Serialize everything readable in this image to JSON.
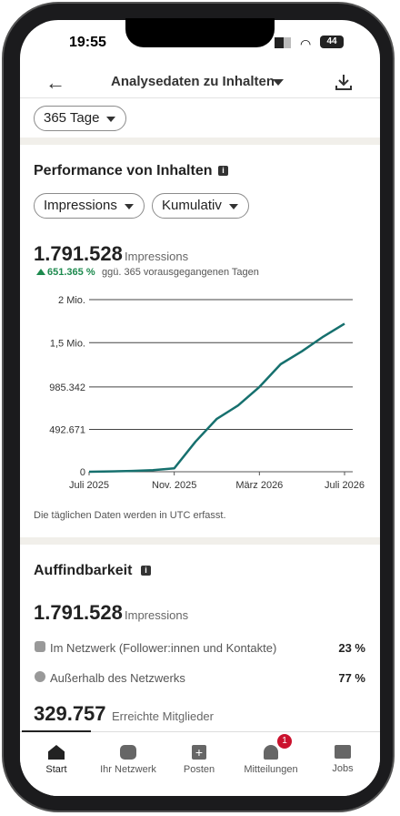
{
  "status_bar": {
    "time": "19:55",
    "battery": "44"
  },
  "header": {
    "title": "Analysedaten zu Inhalten"
  },
  "filter": "365 Tage",
  "performance": {
    "title": "Performance von Inhalten",
    "dropdowns": [
      "Impressions",
      "Kumulativ"
    ],
    "total": "1.791.528",
    "total_label": "Impressions",
    "change": "651.365 %",
    "change_label": "ggü. 365 vorausgegangenen Tagen",
    "chart_data": {
      "type": "line",
      "categories": [
        "Juli 2025",
        null,
        null,
        null,
        "Nov. 2025",
        null,
        null,
        null,
        "März 2026",
        null,
        null,
        null,
        "Juli 2026"
      ],
      "values": [
        0,
        4000,
        9000,
        18000,
        40000,
        350000,
        615000,
        770000,
        985342,
        1250000,
        1400000,
        1570000,
        1720000
      ],
      "color": "#16706e",
      "ylim": [
        0,
        2000000
      ],
      "yticks": [
        0,
        {
          "value": 492671,
          "label": "492.671"
        },
        {
          "value": 985342,
          "label": "985.342"
        },
        {
          "value": 1500000,
          "label": "1,5 Mio."
        },
        {
          "value": 2000000,
          "label": "2 Mio."
        }
      ],
      "grid": true
    },
    "footnote": "Die täglichen Daten werden in UTC erfasst."
  },
  "discoverability": {
    "title": "Auffindbarkeit",
    "total": "1.791.528",
    "total_label": "Impressions",
    "rows": [
      {
        "label": "Im Netzwerk (Follower:innen und Kontakte)",
        "value": "23 %"
      },
      {
        "label": "Außerhalb des Netzwerks",
        "value": "77 %"
      }
    ],
    "members": "329.757",
    "members_label": "Erreichte Mitglieder"
  },
  "nav": {
    "items": [
      "Start",
      "Ihr Netzwerk",
      "Posten",
      "Mitteilungen",
      "Jobs"
    ],
    "badge": "1"
  }
}
